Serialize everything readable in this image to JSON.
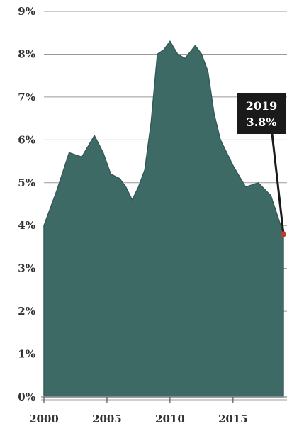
{
  "colors": {
    "area_fill": "#3e6a66",
    "area_stroke": "#345a57",
    "grid": "#9a9a9a",
    "annotation_bg": "#1a1a1a",
    "marker": "#c0392b",
    "text": "#333333"
  },
  "chart_data": {
    "type": "area",
    "title": "",
    "xlabel": "",
    "ylabel": "",
    "xlim": [
      2000,
      2019
    ],
    "ylim": [
      0,
      9
    ],
    "y_unit": "%",
    "grid": "horizontal",
    "x_ticks": [
      2000,
      2005,
      2010,
      2015
    ],
    "x_tick_labels": [
      "2000",
      "2005",
      "2010",
      "2015"
    ],
    "y_ticks": [
      0,
      1,
      2,
      3,
      4,
      5,
      6,
      7,
      8,
      9
    ],
    "y_tick_labels": [
      "0%",
      "1%",
      "2%",
      "3%",
      "4%",
      "5%",
      "6%",
      "7%",
      "8%",
      "9%"
    ],
    "series": [
      {
        "values": [
          {
            "x": 2000.0,
            "y": 4.0
          },
          {
            "x": 2000.5,
            "y": 4.4
          },
          {
            "x": 2001.0,
            "y": 4.8
          },
          {
            "x": 2002.0,
            "y": 5.7
          },
          {
            "x": 2003.0,
            "y": 5.6
          },
          {
            "x": 2004.0,
            "y": 6.1
          },
          {
            "x": 2004.7,
            "y": 5.7
          },
          {
            "x": 2005.3,
            "y": 5.2
          },
          {
            "x": 2006.0,
            "y": 5.1
          },
          {
            "x": 2006.5,
            "y": 4.9
          },
          {
            "x": 2007.0,
            "y": 4.6
          },
          {
            "x": 2007.5,
            "y": 4.9
          },
          {
            "x": 2008.0,
            "y": 5.3
          },
          {
            "x": 2008.5,
            "y": 6.4
          },
          {
            "x": 2009.0,
            "y": 8.0
          },
          {
            "x": 2009.5,
            "y": 8.1
          },
          {
            "x": 2010.0,
            "y": 8.3
          },
          {
            "x": 2010.6,
            "y": 8.0
          },
          {
            "x": 2011.2,
            "y": 7.9
          },
          {
            "x": 2012.0,
            "y": 8.2
          },
          {
            "x": 2012.5,
            "y": 8.0
          },
          {
            "x": 2013.0,
            "y": 7.6
          },
          {
            "x": 2013.5,
            "y": 6.6
          },
          {
            "x": 2014.0,
            "y": 6.0
          },
          {
            "x": 2015.0,
            "y": 5.4
          },
          {
            "x": 2016.0,
            "y": 4.9
          },
          {
            "x": 2017.0,
            "y": 5.0
          },
          {
            "x": 2018.0,
            "y": 4.7
          },
          {
            "x": 2019.0,
            "y": 3.8
          }
        ]
      }
    ],
    "annotations": [
      {
        "x": 2019,
        "y": 3.8,
        "year_label": "2019",
        "value_label": "3.8%"
      }
    ]
  }
}
